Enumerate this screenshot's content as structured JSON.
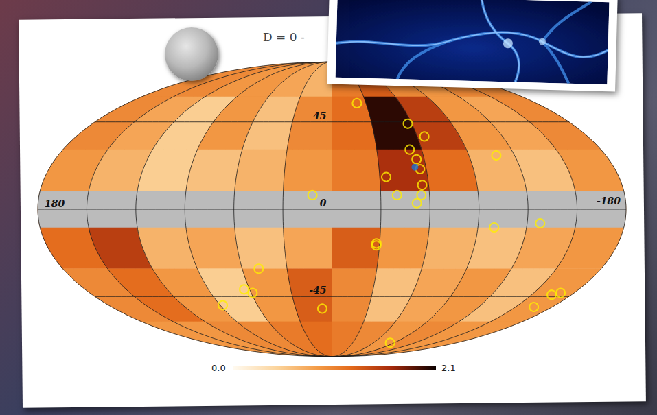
{
  "chart_data": {
    "type": "map",
    "title": "D = 0 -",
    "xlim": [
      180,
      -180
    ],
    "ylim": [
      -90,
      90
    ],
    "xticks": [
      180,
      -180
    ],
    "yticks": [
      45,
      0,
      -45
    ],
    "grid": true,
    "cells": {
      "lon": [
        165,
        135,
        105,
        75,
        45,
        15,
        -15,
        -45,
        -75,
        -105,
        -135,
        -165
      ],
      "lat": [
        75,
        45,
        15,
        -15,
        -45,
        -75
      ],
      "values": [
        [
          1.0,
          1.0,
          0.9,
          0.9,
          0.8,
          0.7,
          1.1,
          1.3,
          1.0,
          0.9,
          1.0,
          1.0
        ],
        [
          1.0,
          0.8,
          0.5,
          0.9,
          0.6,
          1.0,
          1.2,
          2.0,
          1.5,
          0.9,
          0.8,
          1.0
        ],
        [
          0.9,
          0.7,
          0.5,
          0.6,
          0.7,
          0.9,
          1.1,
          1.6,
          1.2,
          0.7,
          0.6,
          0.9
        ],
        [
          1.2,
          1.5,
          0.7,
          0.8,
          0.6,
          0.8,
          1.3,
          0.9,
          0.7,
          0.6,
          0.8,
          0.9
        ],
        [
          1.0,
          1.2,
          0.9,
          0.5,
          0.9,
          1.3,
          1.0,
          0.6,
          0.8,
          0.9,
          0.6,
          0.9
        ],
        [
          0.9,
          0.9,
          1.0,
          1.0,
          1.1,
          1.2,
          1.1,
          1.0,
          0.9,
          1.0,
          0.9,
          0.9
        ]
      ]
    },
    "colorbar": {
      "range": [
        0,
        2.1
      ],
      "ticks": [
        {
          "value": 0,
          "label": "0.0"
        },
        {
          "value": 2.1,
          "label": "2.1"
        }
      ]
    },
    "mask": {
      "lat": [
        -9,
        9
      ],
      "color": "#bbbbbb"
    },
    "series": [
      {
        "type": "scatter",
        "marker": "circle_open",
        "color": "#ffee00",
        "x": [
          -22,
          -57,
          -65,
          -52,
          -55,
          -56,
          -34,
          -56,
          -55,
          -40,
          -52,
          12,
          -108,
          -100,
          -128,
          -28,
          -28,
          49,
          64,
          59,
          88,
          8,
          -84,
          -165,
          -165,
          -170
        ],
        "y": [
          56,
          44,
          37,
          30,
          25,
          20,
          16,
          12,
          7,
          7,
          3,
          7,
          27,
          -9,
          -7,
          -17,
          -18,
          -30,
          -41,
          -43,
          -50,
          -52,
          -75,
          -51,
          -44,
          -43
        ]
      },
      {
        "type": "scatter",
        "marker": "circle",
        "color": "#1f6fd6",
        "x": [
          -53
        ],
        "y": [
          21
        ]
      }
    ]
  }
}
